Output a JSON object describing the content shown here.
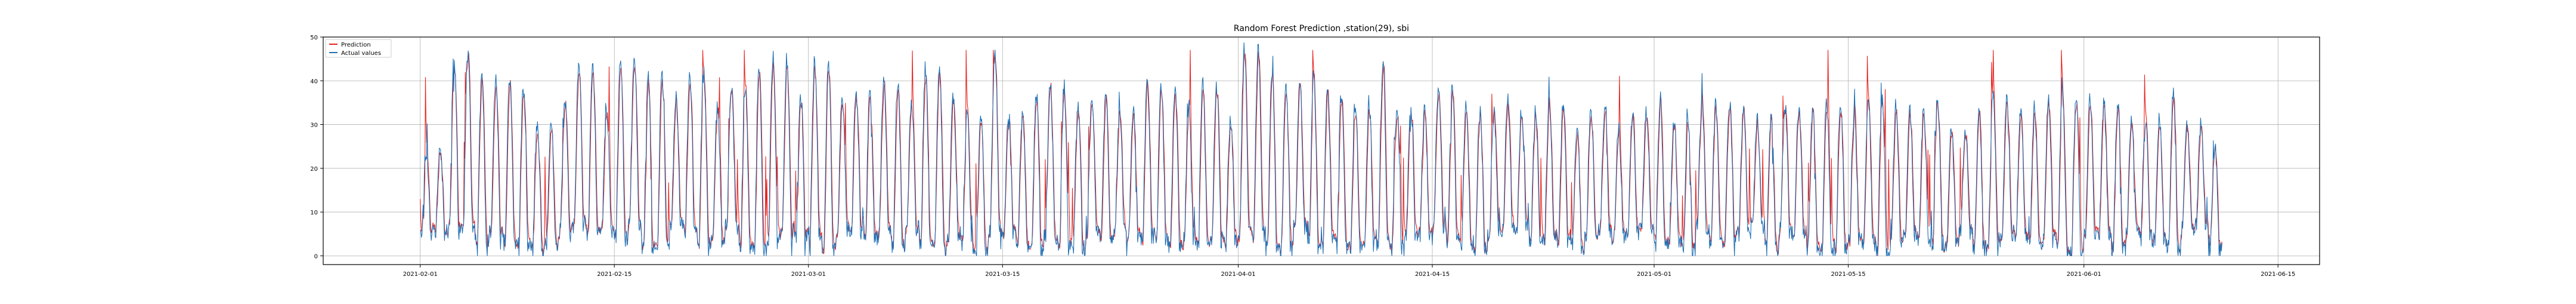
{
  "chart_data": {
    "type": "line",
    "title": "Random Forest Prediction ,station(29), sbi",
    "xlabel": "",
    "ylabel": "",
    "ylim": [
      -2,
      50
    ],
    "x_ticks": [
      "2021-02-01",
      "2021-02-15",
      "2021-03-01",
      "2021-03-15",
      "2021-04-01",
      "2021-04-15",
      "2021-05-01",
      "2021-05-15",
      "2021-06-01",
      "2021-06-15"
    ],
    "y_ticks": [
      0,
      10,
      20,
      30,
      40,
      50
    ],
    "x_range": [
      "2021-01-25",
      "2021-06-18"
    ],
    "data_range": [
      "2021-02-01",
      "2021-06-11"
    ],
    "grid": true,
    "legend_position": "top-left",
    "series": [
      {
        "name": "Prediction",
        "color": "#e8211d"
      },
      {
        "name": "Actual values",
        "color": "#1f6fb4"
      }
    ],
    "representative_daily_peaks": [
      24,
      46,
      41,
      40,
      38,
      30,
      36,
      44,
      34,
      46,
      41,
      36,
      42,
      34,
      38,
      42,
      45,
      36,
      44,
      37,
      38,
      40,
      35,
      43,
      36,
      32,
      47,
      33,
      37,
      39,
      35,
      36,
      33,
      40,
      38,
      34,
      39,
      32,
      48,
      42,
      39,
      41,
      37,
      35,
      44,
      35,
      33,
      38,
      34,
      33,
      36,
      33,
      35,
      28,
      33,
      29,
      33,
      36,
      31,
      34,
      35,
      34,
      31,
      34,
      34,
      35,
      33,
      36,
      35,
      33,
      36,
      29,
      33,
      36,
      34,
      36,
      37,
      36,
      35,
      31,
      32,
      37,
      30,
      25
    ]
  }
}
